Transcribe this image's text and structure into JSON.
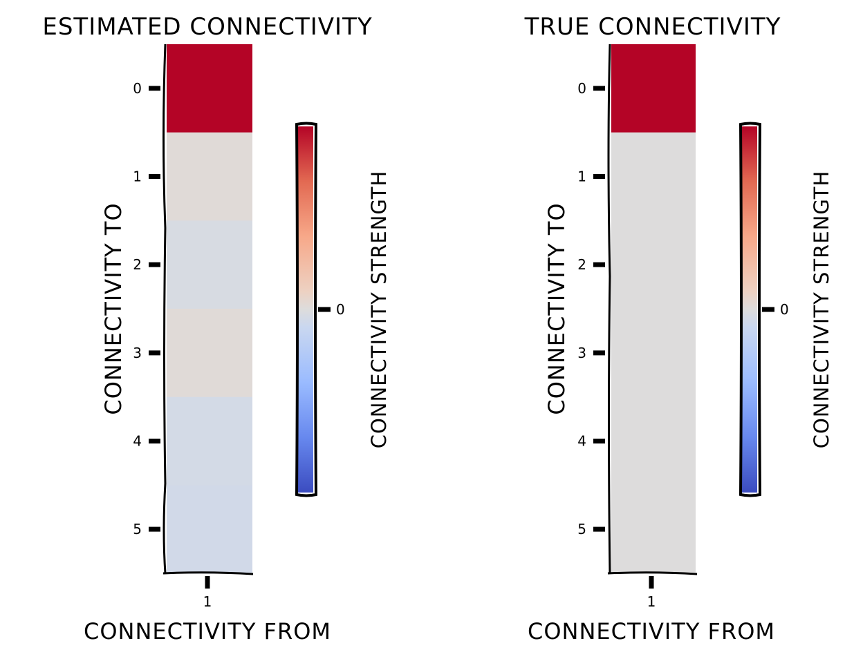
{
  "chart_data": [
    {
      "type": "heatmap",
      "title": "ESTIMATED CONNECTIVITY",
      "xlabel": "CONNECTIVITY FROM",
      "ylabel": "CONNECTIVITY TO",
      "x_ticks": [
        "1"
      ],
      "y_ticks": [
        "0",
        "1",
        "2",
        "3",
        "4",
        "5"
      ],
      "values": [
        1.0,
        0.02,
        -0.03,
        0.02,
        -0.05,
        -0.06
      ],
      "colorbar": {
        "label": "CONNECTIVITY STRENGTH",
        "ticks": [
          "0"
        ],
        "range": [
          -1,
          1
        ],
        "colormap": "coolwarm"
      }
    },
    {
      "type": "heatmap",
      "title": "TRUE CONNECTIVITY",
      "xlabel": "CONNECTIVITY FROM",
      "ylabel": "CONNECTIVITY TO",
      "x_ticks": [
        "1"
      ],
      "y_ticks": [
        "0",
        "1",
        "2",
        "3",
        "4",
        "5"
      ],
      "values": [
        1.0,
        0.0,
        0.0,
        0.0,
        0.0,
        0.0
      ],
      "colorbar": {
        "label": "CONNECTIVITY STRENGTH",
        "ticks": [
          "0"
        ],
        "range": [
          -1,
          1
        ],
        "colormap": "coolwarm"
      }
    }
  ],
  "colors": {
    "coolwarm_low": "#3b4cc0",
    "coolwarm_mid": "#dddcdc",
    "coolwarm_high": "#b40426"
  }
}
